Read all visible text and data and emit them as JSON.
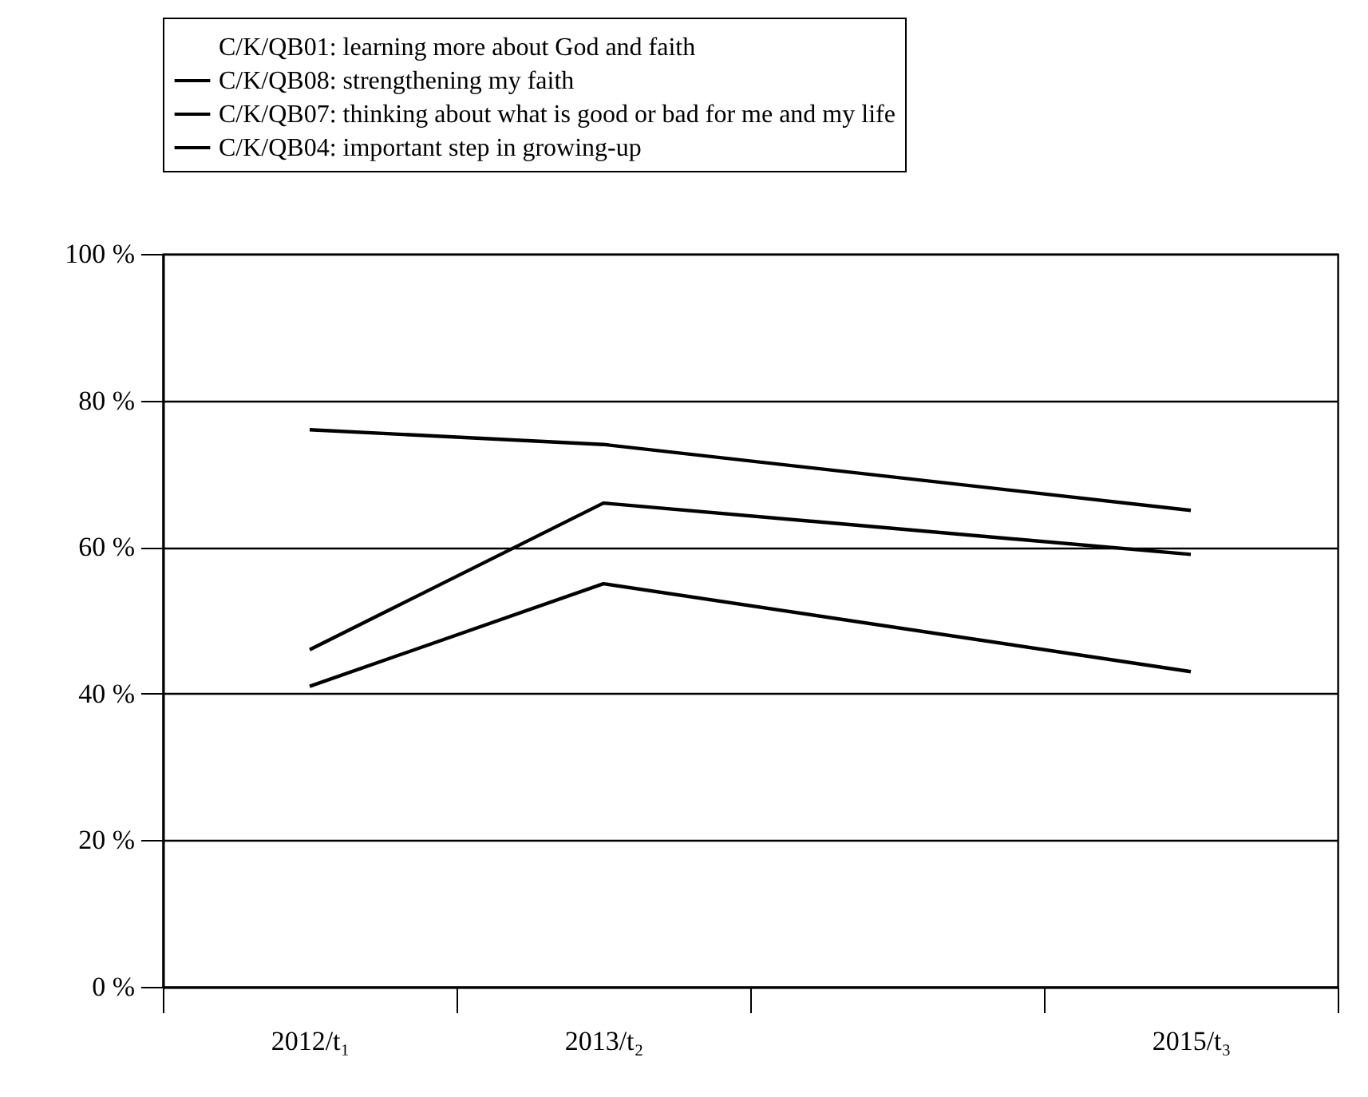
{
  "chart_data": {
    "type": "line",
    "categories": [
      "2012/t₁",
      "2013/t₂",
      null,
      "2015/t₃"
    ],
    "series": [
      {
        "name": "C/K/QB01: learning more about God and faith",
        "values": [
          null,
          null,
          null,
          null
        ]
      },
      {
        "name": "C/K/QB08: strengthening my faith",
        "color": "#000000",
        "values": [
          76,
          74,
          null,
          65
        ]
      },
      {
        "name": "C/K/QB07: thinking about what is good or bad for me and my life",
        "color": "#000000",
        "values": [
          46,
          66,
          null,
          59
        ]
      },
      {
        "name": "C/K/QB04: important step in growing-up",
        "color": "#000000",
        "values": [
          41,
          55,
          null,
          43
        ]
      }
    ],
    "ylim": [
      0,
      100
    ],
    "yticks": [
      {
        "value": 0,
        "label": "0 %"
      },
      {
        "value": 20,
        "label": "20 %"
      },
      {
        "value": 40,
        "label": "40 %"
      },
      {
        "value": 60,
        "label": "60 %"
      },
      {
        "value": 80,
        "label": "80 %"
      },
      {
        "value": 100,
        "label": "100 %"
      }
    ],
    "grid": "y",
    "legend": "top",
    "marker": "none",
    "line_style": "solid"
  }
}
